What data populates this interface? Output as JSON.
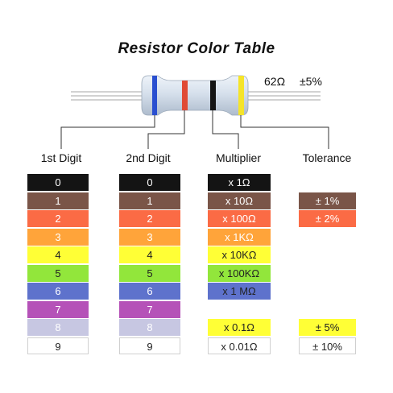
{
  "title": "Resistor Color Table",
  "resistor": {
    "value": "62Ω",
    "tolerance": "±5%",
    "band_colors": [
      "#2a4fd0",
      "#e04a35",
      "#151515",
      "#f5e42a"
    ],
    "body_color": "#d9e3ef"
  },
  "headers": {
    "digit1": "1st Digit",
    "digit2": "2nd Digit",
    "multiplier": "Multiplier",
    "tolerance": "Tolerance"
  },
  "colors": [
    {
      "name": "black",
      "hex": "#141414",
      "text": "#ffffff"
    },
    {
      "name": "brown",
      "hex": "#7a5548",
      "text": "#ffffff"
    },
    {
      "name": "red",
      "hex": "#fb6b45",
      "text": "#ffffff"
    },
    {
      "name": "orange",
      "hex": "#ffa43a",
      "text": "#ffffff"
    },
    {
      "name": "yellow",
      "hex": "#ffff36",
      "text": "#222222"
    },
    {
      "name": "green",
      "hex": "#92e63b",
      "text": "#222222"
    },
    {
      "name": "blue",
      "hex": "#5e72cc",
      "text": "#ffffff"
    },
    {
      "name": "violet",
      "hex": "#b552b8",
      "text": "#ffffff"
    },
    {
      "name": "gray",
      "hex": "#c7c7e2",
      "text": "#ffffff"
    },
    {
      "name": "white",
      "hex": "#ffffff",
      "text": "#222222"
    }
  ],
  "digits": [
    "0",
    "1",
    "2",
    "3",
    "4",
    "5",
    "6",
    "7",
    "8",
    "9"
  ],
  "multipliers": [
    {
      "label": "x 1Ω",
      "color": "#141414",
      "text": "#ffffff"
    },
    {
      "label": "x 10Ω",
      "color": "#7a5548",
      "text": "#ffffff"
    },
    {
      "label": "x 100Ω",
      "color": "#fb6b45",
      "text": "#ffffff"
    },
    {
      "label": "x 1KΩ",
      "color": "#ffa43a",
      "text": "#ffffff"
    },
    {
      "label": "x 10KΩ",
      "color": "#ffff36",
      "text": "#222222"
    },
    {
      "label": "x 100KΩ",
      "color": "#92e63b",
      "text": "#222222"
    },
    {
      "label": "x 1 MΩ",
      "color": "#5e72cc",
      "text": "#222222"
    },
    null,
    {
      "label": "x 0.1Ω",
      "color": "#ffff36",
      "text": "#222222"
    },
    {
      "label": "x 0.01Ω",
      "color": "#ffffff",
      "text": "#222222"
    }
  ],
  "tolerances": [
    null,
    {
      "label": "± 1%",
      "color": "#7a5548",
      "text": "#ffffff"
    },
    {
      "label": "± 2%",
      "color": "#fb6b45",
      "text": "#ffffff"
    },
    null,
    null,
    null,
    null,
    null,
    {
      "label": "± 5%",
      "color": "#ffff36",
      "text": "#222222"
    },
    {
      "label": "± 10%",
      "color": "#ffffff",
      "text": "#222222"
    }
  ]
}
